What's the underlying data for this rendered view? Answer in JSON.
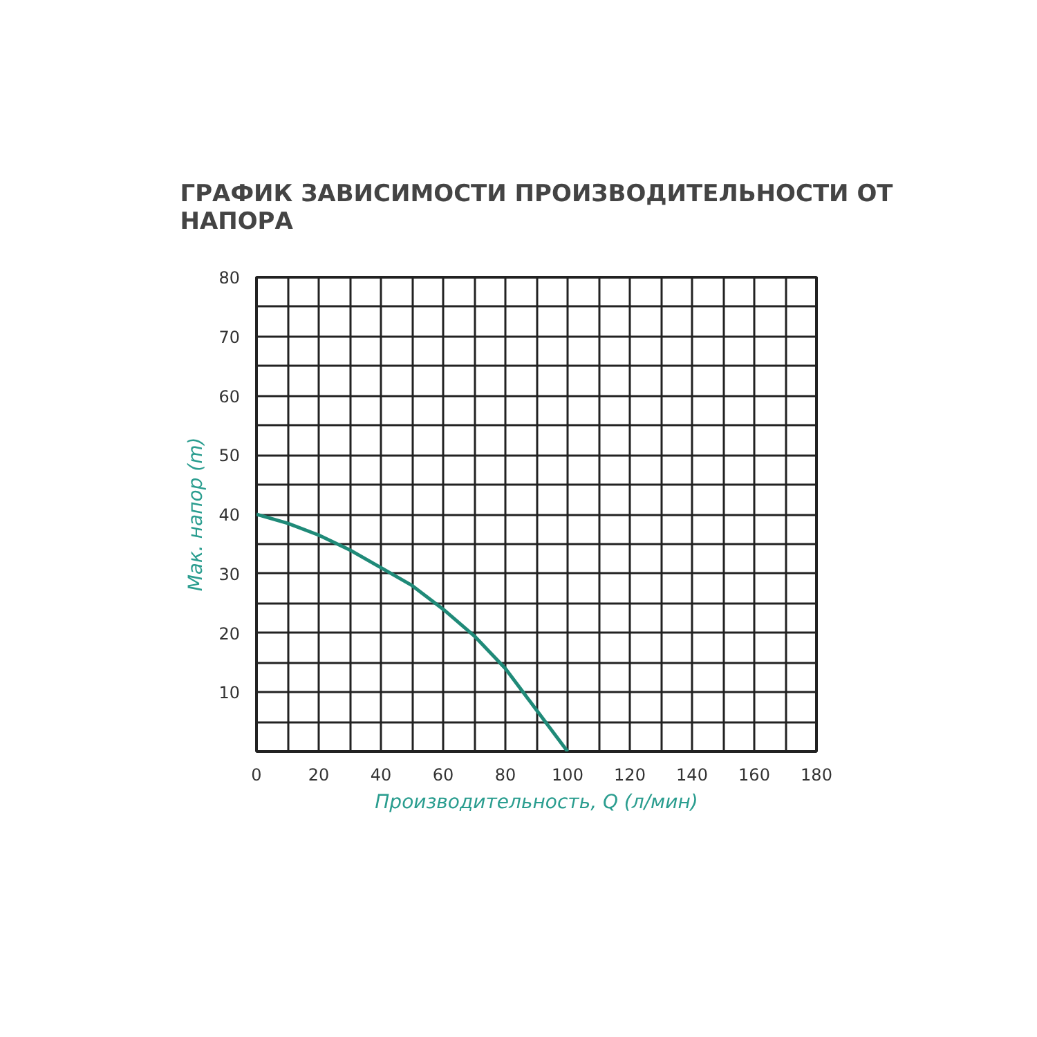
{
  "chart_data": {
    "type": "line",
    "title": "ГРАФИК ЗАВИСИМОСТИ ПРОИЗВОДИТЕЛЬНОСТИ ОТ НАПОРА",
    "xlabel": "Производительность, Q (л/мин)",
    "ylabel": "Мак. напор (m)",
    "x": [
      0,
      10,
      20,
      30,
      40,
      50,
      60,
      70,
      80,
      90,
      100
    ],
    "series": [
      {
        "color": "#1f8a78",
        "values": [
          40,
          38.5,
          36.5,
          34,
          31,
          28,
          24,
          19.5,
          14,
          7,
          0
        ]
      }
    ],
    "xlim": [
      0,
      180
    ],
    "ylim": [
      0,
      80
    ],
    "xticks": [
      0,
      {
        "value": 10,
        "label": null
      },
      20,
      {
        "value": 30,
        "label": null
      },
      40,
      {
        "value": 50,
        "label": null
      },
      60,
      {
        "value": 70,
        "label": null
      },
      80,
      {
        "value": 90,
        "label": null
      },
      100,
      {
        "value": 110,
        "label": null
      },
      120,
      {
        "value": 130,
        "label": null
      },
      140,
      {
        "value": 150,
        "label": null
      },
      160,
      {
        "value": 170,
        "label": null
      },
      180
    ],
    "yticks": [
      {
        "value": 0,
        "label": null
      },
      {
        "value": 5,
        "label": null
      },
      10,
      {
        "value": 15,
        "label": null
      },
      20,
      {
        "value": 25,
        "label": null
      },
      30,
      {
        "value": 35,
        "label": null
      },
      40,
      {
        "value": 45,
        "label": null
      },
      50,
      {
        "value": 55,
        "label": null
      },
      60,
      {
        "value": 65,
        "label": null
      },
      70,
      {
        "value": 75,
        "label": null
      },
      80
    ],
    "grid": true,
    "marker": "none",
    "line_style": "solid"
  }
}
